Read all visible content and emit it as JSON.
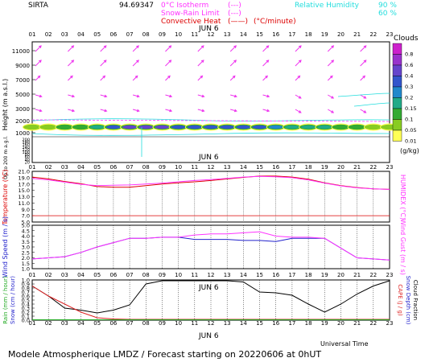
{
  "header": {
    "site": "SIRTA",
    "coords": "94.69347",
    "legend": [
      {
        "label": "0°C Isotherm",
        "sample": "(---)",
        "color": "#ff33ff"
      },
      {
        "label": "Snow-Rain Limit",
        "sample": "(---)",
        "color": "#ff33ff"
      },
      {
        "label": "Convective Heat",
        "sample": "(——)",
        "color": "#dd0000"
      }
    ],
    "convective_unit": "(°C/minute)",
    "rh_label": "Relative Humidity",
    "rh_levels": [
      "90 %",
      "60 %"
    ],
    "rh_color": "#22dddd"
  },
  "hours": [
    "01",
    "02",
    "03",
    "04",
    "05",
    "06",
    "07",
    "08",
    "09",
    "10",
    "11",
    "12",
    "13",
    "14",
    "15",
    "16",
    "17",
    "18",
    "19",
    "20",
    "21",
    "22",
    "23"
  ],
  "date_label": "JUN  6",
  "footer": {
    "xlabel": "Universal Time",
    "title": "Modele Atmospherique LMDZ / Forecast starting on 20220606 at 0hUT"
  },
  "clouds": {
    "title": "Clouds",
    "unit": "(g/kg)",
    "ticks": [
      "0.8",
      "0.6",
      "0.4",
      "0.3",
      "0.2",
      "0.15",
      "0.1",
      "0.05",
      "0.01"
    ],
    "colors": [
      "#cc22cc",
      "#9933cc",
      "#6644cc",
      "#3355cc",
      "#2288cc",
      "#22aa88",
      "#33aa33",
      "#88cc22",
      "#ffff55"
    ]
  },
  "chart_data": [
    {
      "type": "heatmap",
      "title": "Clouds",
      "ylabel": "Height (m a.s.l.)",
      "ylabel_low": "Up to 200 m a.g.l.",
      "yticks_upper": [
        "11000",
        "9000",
        "7000",
        "5000",
        "3000",
        "2000",
        "1000"
      ],
      "yticks_lower": [
        "200",
        "180",
        "160",
        "140",
        "120",
        "100",
        "80",
        "60",
        "40",
        "20"
      ],
      "x": [
        "01",
        "02",
        "03",
        "04",
        "05",
        "06",
        "07",
        "08",
        "09",
        "10",
        "11",
        "12",
        "13",
        "14",
        "15",
        "16",
        "17",
        "18",
        "19",
        "20",
        "21",
        "22",
        "23"
      ],
      "cloud_layer_height_m": 1600,
      "cloud_max_gkg": [
        0.05,
        0.05,
        0.1,
        0.1,
        0.15,
        0.3,
        0.4,
        0.4,
        0.4,
        0.3,
        0.3,
        0.3,
        0.3,
        0.3,
        0.3,
        0.2,
        0.15,
        0.15,
        0.15,
        0.1,
        0.1,
        0.05,
        0.05
      ],
      "freezing_level_m": 2600,
      "wind_arrow_levels_m": [
        11000,
        9000,
        7000,
        5000,
        3000
      ]
    },
    {
      "type": "line",
      "ylabel": "Temperature (°C)",
      "y2label": "HUMIDEX (°C)",
      "ylim": [
        5,
        21
      ],
      "yticks": [
        "21.0",
        "19.0",
        "17.0",
        "15.0",
        "13.0",
        "11.0",
        "9.0",
        "7.0",
        "5.0"
      ],
      "x": [
        "01",
        "02",
        "03",
        "04",
        "05",
        "06",
        "07",
        "08",
        "09",
        "10",
        "11",
        "12",
        "13",
        "14",
        "15",
        "16",
        "17",
        "18",
        "19",
        "20",
        "21",
        "22",
        "23"
      ],
      "series": [
        {
          "name": "Temperature",
          "color": "#dd0000",
          "values": [
            19.2,
            18.6,
            17.8,
            17.1,
            16.2,
            16.0,
            16.0,
            16.5,
            17.0,
            17.4,
            17.7,
            18.1,
            18.6,
            19.1,
            19.5,
            19.5,
            19.2,
            18.5,
            17.4,
            16.5,
            15.9,
            15.5,
            15.3
          ]
        },
        {
          "name": "HUMIDEX",
          "color": "#ff33ff",
          "values": [
            18.8,
            18.3,
            17.6,
            16.9,
            16.5,
            16.6,
            16.7,
            17.0,
            17.3,
            17.7,
            18.1,
            18.4,
            18.8,
            19.2,
            19.4,
            19.3,
            19.0,
            18.3,
            17.3,
            16.4,
            15.8,
            15.5,
            15.3
          ]
        }
      ],
      "reference_line": 7.0
    },
    {
      "type": "line",
      "ylabel": "Wind Speed (m / s)",
      "y2label": "Wind Gust (m / s)",
      "ylim": [
        1.0,
        5.0
      ],
      "yticks": [
        "5.0",
        "4.5",
        "4.0",
        "3.5",
        "3.0",
        "2.5",
        "2.0",
        "1.5",
        "1.0"
      ],
      "x": [
        "01",
        "02",
        "03",
        "04",
        "05",
        "06",
        "07",
        "08",
        "09",
        "10",
        "11",
        "12",
        "13",
        "14",
        "15",
        "16",
        "17",
        "18",
        "19",
        "20",
        "21",
        "22",
        "23"
      ],
      "series": [
        {
          "name": "Wind Speed",
          "color": "#2222cc",
          "values": [
            1.9,
            2.0,
            2.1,
            2.5,
            3.0,
            3.4,
            3.8,
            3.8,
            3.9,
            3.9,
            3.7,
            3.7,
            3.7,
            3.6,
            3.6,
            3.5,
            3.8,
            3.8,
            3.8,
            2.9,
            2.0,
            1.9,
            1.8
          ]
        },
        {
          "name": "Wind Gust",
          "color": "#ff33ff",
          "values": [
            1.9,
            2.0,
            2.1,
            2.5,
            3.0,
            3.4,
            3.8,
            3.8,
            3.9,
            3.9,
            4.1,
            4.2,
            4.2,
            4.3,
            4.4,
            4.0,
            3.9,
            3.9,
            3.8,
            2.9,
            2.0,
            1.9,
            1.8
          ]
        }
      ]
    },
    {
      "type": "line",
      "ylabel": "Rain (mm / hour)",
      "ylabel2": "Snow (cm / hour)",
      "y2label": "CAPE (J / g)",
      "y2label2": "Snow Depth (cm)",
      "y2label3": "Cloud Fraction",
      "ylim": [
        0.0,
        1.0
      ],
      "yticks": [
        "1.0",
        "0.9",
        "0.8",
        "0.7",
        "0.6",
        "0.5",
        "0.4",
        "0.3",
        "0.2",
        "0.1",
        "0.0"
      ],
      "x": [
        "01",
        "02",
        "03",
        "04",
        "05",
        "06",
        "07",
        "08",
        "09",
        "10",
        "11",
        "12",
        "13",
        "14",
        "15",
        "16",
        "17",
        "18",
        "19",
        "20",
        "21",
        "22",
        "23"
      ],
      "series": [
        {
          "name": "Cloud Fraction",
          "color": "#000000",
          "values": [
            0.85,
            0.6,
            0.3,
            0.25,
            0.18,
            0.25,
            0.38,
            0.9,
            0.98,
            0.98,
            0.98,
            0.98,
            0.98,
            0.95,
            0.7,
            0.68,
            0.62,
            0.4,
            0.2,
            0.4,
            0.65,
            0.85,
            0.98
          ]
        },
        {
          "name": "Rain",
          "color": "#dd2222",
          "values": [
            0.85,
            0.6,
            0.4,
            0.2,
            0.06,
            0.03,
            0.02,
            0.02,
            0.02,
            0.02,
            0.02,
            0.02,
            0.02,
            0.02,
            0.02,
            0.02,
            0.02,
            0.02,
            0.02,
            0.02,
            0.02,
            0.02,
            0.02
          ]
        },
        {
          "name": "Snow",
          "color": "#22aa22",
          "values": [
            0.01,
            0.01,
            0.01,
            0.01,
            0.01,
            0.01,
            0.01,
            0.01,
            0.01,
            0.01,
            0.01,
            0.01,
            0.01,
            0.01,
            0.01,
            0.01,
            0.01,
            0.01,
            0.01,
            0.01,
            0.01,
            0.01,
            0.01
          ]
        }
      ]
    }
  ]
}
